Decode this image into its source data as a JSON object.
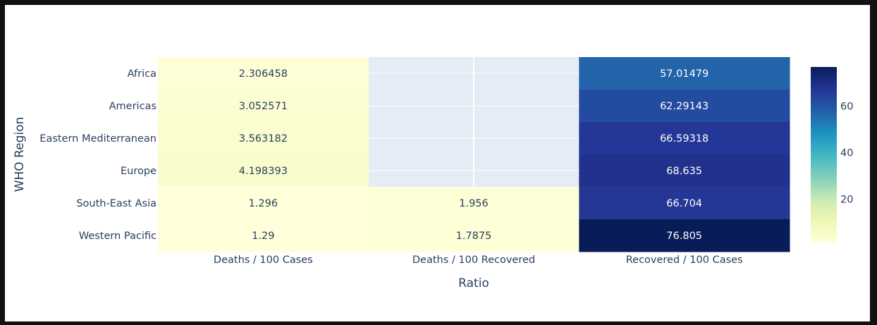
{
  "chart_data": {
    "type": "heatmap",
    "x_categories": [
      "Deaths / 100 Cases",
      "Deaths / 100 Recovered",
      "Recovered / 100 Cases"
    ],
    "y_categories": [
      "Africa",
      "Americas",
      "Eastern Mediterranean",
      "Europe",
      "South-East Asia",
      "Western Pacific"
    ],
    "z": [
      [
        2.306458,
        null,
        57.01479
      ],
      [
        3.052571,
        null,
        62.29143
      ],
      [
        3.563182,
        null,
        66.59318
      ],
      [
        4.198393,
        null,
        68.635
      ],
      [
        1.296,
        1.956,
        66.704
      ],
      [
        1.29,
        1.7875,
        76.805
      ]
    ],
    "xlabel": "Ratio",
    "ylabel": "WHO Region",
    "colorscale": "YlGnBu",
    "colorbar": {
      "range": [
        1.29,
        76.805
      ],
      "ticks": [
        20,
        40,
        60
      ]
    },
    "empty_cell_color": "#e5ecf6",
    "text_color_dark": "#2a3f5f",
    "text_color_light": "#ffffff"
  }
}
